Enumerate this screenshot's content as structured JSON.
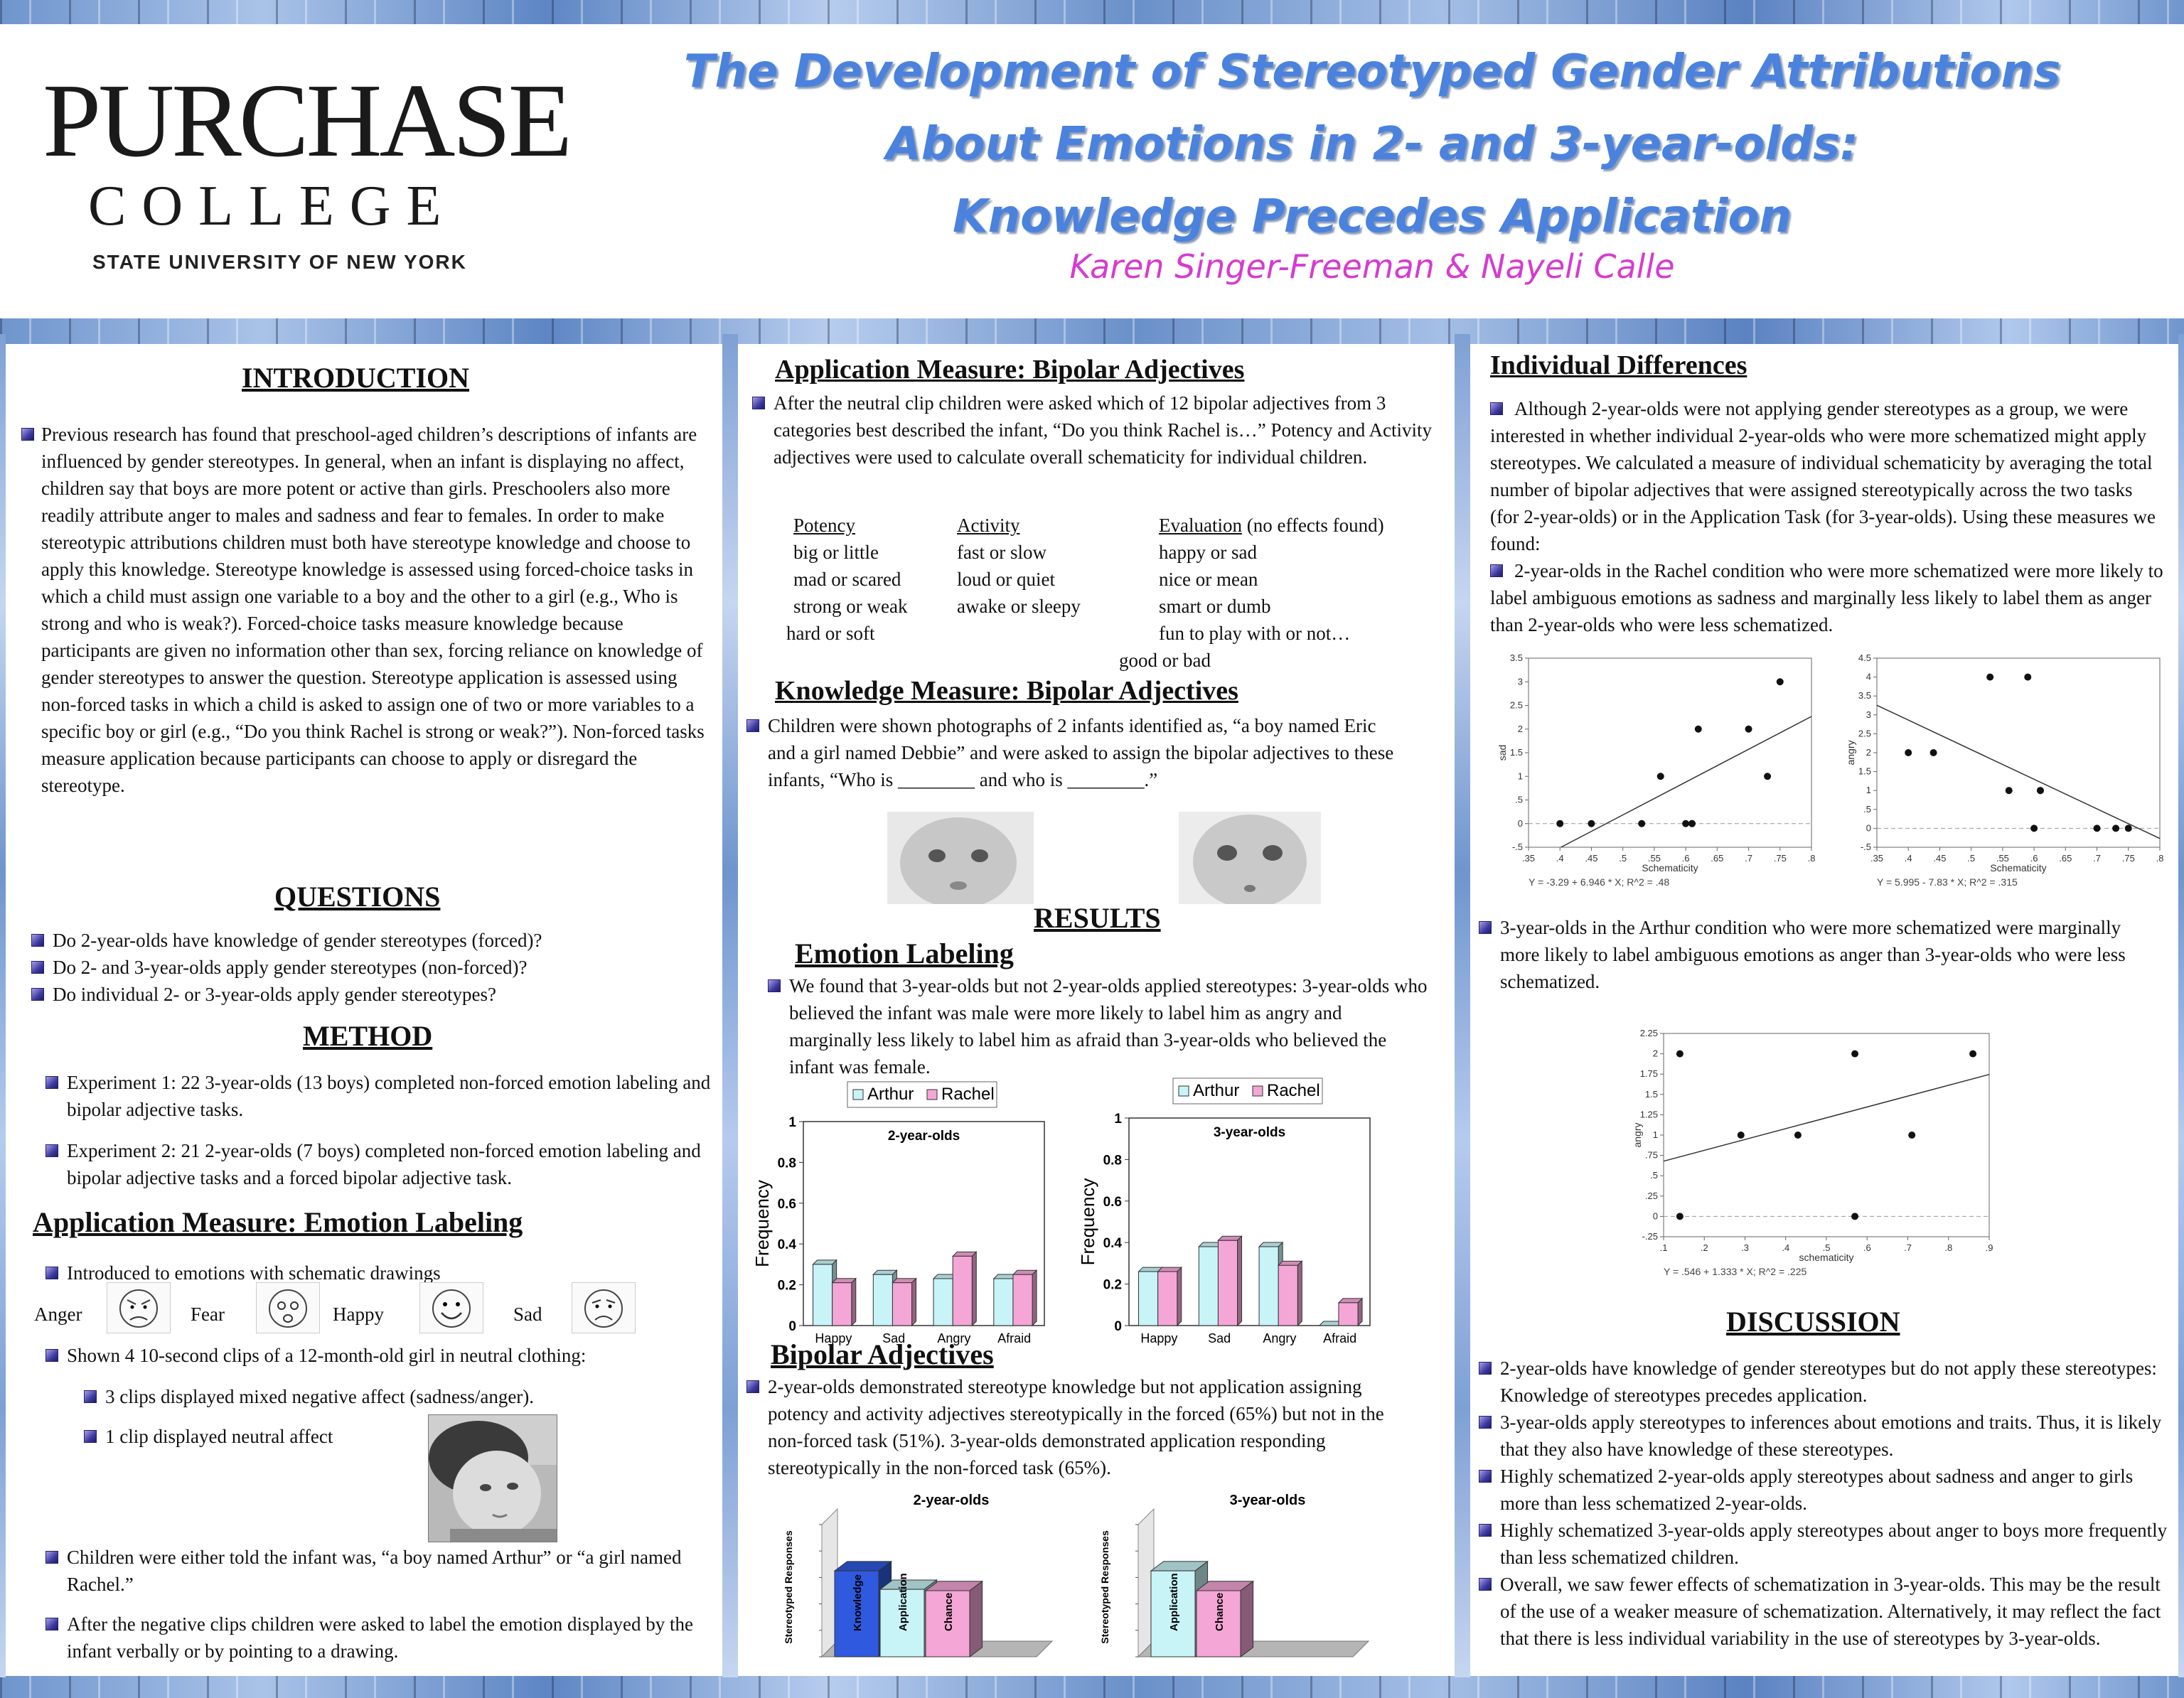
{
  "header": {
    "logo_line1": "PURCHASE",
    "logo_line2": "COLLEGE",
    "logo_line3": "STATE UNIVERSITY OF NEW YORK",
    "title_line1": "The Development of Stereotyped Gender Attributions",
    "title_line2": "About Emotions in 2- and 3-year-olds:",
    "title_line3": "Knowledge Precedes Application",
    "authors": "Karen Singer-Freeman &  Nayeli Calle"
  },
  "intro": {
    "heading": "INTRODUCTION",
    "text": "Previous research has found that preschool-aged children’s descriptions of infants are influenced by gender stereotypes.  In general, when an infant is displaying no affect, children say that boys are more potent or active than girls. Preschoolers also more readily attribute anger to males and sadness and fear to females.  In order to make stereotypic attributions children must both have stereotype knowledge and choose to apply this knowledge.  Stereotype knowledge is assessed using forced-choice tasks in which a child must assign one variable to a boy and the other to a girl (e.g., Who is strong and who is weak?).  Forced-choice tasks measure knowledge because participants are given no information other than sex, forcing reliance on knowledge of gender stereotypes to answer the question.  Stereotype application is assessed using non-forced tasks in which a child is asked to assign one of two or more variables to a specific boy or girl (e.g., “Do you think Rachel is strong or weak?”).  Non-forced tasks measure application because participants can choose to apply or disregard the stereotype."
  },
  "questions": {
    "heading": "QUESTIONS",
    "items": [
      "Do 2-year-olds have knowledge of gender stereotypes (forced)?",
      "Do 2- and 3-year-olds apply gender stereotypes (non-forced)?",
      "Do individual 2- or 3-year-olds apply gender stereotypes?"
    ]
  },
  "method": {
    "heading": "METHOD",
    "exp1": "Experiment 1: 22 3-year-olds (13 boys) completed non-forced emotion labeling and bipolar adjective tasks.",
    "exp2": "Experiment 2:  21 2-year-olds (7 boys) completed non-forced emotion labeling and bipolar adjective tasks and a forced bipolar adjective task."
  },
  "app_emotion": {
    "heading": "Application Measure:  Emotion Labeling",
    "intro": "Introduced to emotions with schematic drawings",
    "faces": [
      "Anger",
      "Fear",
      "Happy",
      "Sad"
    ],
    "clips": "Shown 4 10-second clips of a 12-month-old girl in neutral clothing:",
    "sub1": "3 clips displayed mixed negative affect (sadness/anger).",
    "sub2": "1 clip displayed neutral affect",
    "told": "Children were either told the infant was, “a boy named Arthur” or “a girl named Rachel.”",
    "after": "After the negative clips children were asked to label the emotion displayed by the infant verbally or by pointing to a drawing."
  },
  "app_bipolar": {
    "heading": "Application Measure: Bipolar Adjectives",
    "text": "After the neutral clip children were asked which of 12 bipolar adjectives from 3 categories best described the infant, “Do you think Rachel is…”  Potency and Activity adjectives were used to calculate overall schematicity  for individual children.",
    "potency_h": "Potency",
    "potency": [
      "big or little",
      "mad or scared",
      "strong or weak",
      "hard or soft"
    ],
    "activity_h": "Activity",
    "activity": [
      "fast  or slow",
      "loud or quiet",
      "awake or sleepy"
    ],
    "evaluation_h": "Evaluation",
    "evaluation_note": "(no effects found)",
    "evaluation": [
      "happy or sad",
      "nice or mean",
      "smart or dumb",
      "fun to play with or not…",
      "good or bad"
    ]
  },
  "knowledge": {
    "heading": "Knowledge Measure: Bipolar Adjectives",
    "text": "Children were shown photographs of 2 infants identified as, “a boy named Eric and a girl named Debbie” and were asked to assign the bipolar adjectives to these infants, “Who is ________ and who is ________.”"
  },
  "results": {
    "heading": "RESULTS",
    "emotion_h": "Emotion Labeling",
    "emotion_text": "We found that 3-year-olds but not 2-year-olds applied stereotypes:  3-year-olds who believed the infant was male were more likely to label him as angry and marginally less likely to label him as afraid than 3-year-olds who believed the infant was female.",
    "bipolar_h": "Bipolar Adjectives",
    "bipolar_text": "2-year-olds demonstrated stereotype knowledge but not application assigning potency and activity adjectives stereotypically in the forced (65%) but not in the non-forced task (51%).  3-year-olds demonstrated application responding stereotypically in the non-forced task (65%)."
  },
  "individual": {
    "heading": "Individual Differences",
    "text1": "Although 2-year-olds were not applying gender stereotypes as a group, we were interested in whether individual 2-year-olds who were more schematized might apply stereotypes.  We calculated a measure of individual schematicity by averaging the total number of bipolar adjectives that were assigned stereotypically across the two tasks (for 2-year-olds) or in the Application Task (for 3-year-olds).  Using these measures we found:",
    "text2": "2-year-olds in the Rachel condition who were more schematized were more likely to label ambiguous emotions as sadness and marginally less likely to label them as anger than 2-year-olds who were less schematized.",
    "text3": "3-year-olds in the Arthur condition who were more schematized were marginally more likely to label ambiguous emotions as anger than 3-year-olds who were less schematized."
  },
  "discussion": {
    "heading": "DISCUSSION",
    "items": [
      "2-year-olds have knowledge of gender stereotypes but do not apply these stereotypes: Knowledge of stereotypes precedes application.",
      "3-year-olds apply stereotypes to inferences about emotions and traits. Thus, it is likely that they also have knowledge of these stereotypes.",
      "Highly schematized 2-year-olds apply stereotypes about sadness and anger to girls more than less schematized 2-year-olds.",
      "Highly schematized 3-year-olds apply stereotypes about anger to boys more frequently than less schematized  children.",
      "Overall, we saw fewer effects of schematization in 3-year-olds.  This may be the result of the use of a weaker measure of schematization. Alternatively, it may reflect the fact that there is less individual variability in the use of stereotypes by 3-year-olds."
    ]
  },
  "colors": {
    "arthur": "#c8f4f8",
    "rachel": "#f4a6d6",
    "knowledge": "#2f5ae0",
    "title": "#4a82de",
    "authors": "#d63bd0"
  },
  "chart_data": [
    {
      "type": "bar",
      "title": "2-year-olds",
      "ylabel": "Frequency",
      "categories": [
        "Happy",
        "Sad",
        "Angry",
        "Afraid"
      ],
      "ylim": [
        0,
        1
      ],
      "yticks": [
        "0",
        "0.2",
        "0.4",
        "0.6",
        "0.8",
        "1"
      ],
      "series": [
        {
          "name": "Arthur",
          "values": [
            0.3,
            0.25,
            0.23,
            0.23
          ]
        },
        {
          "name": "Rachel",
          "values": [
            0.21,
            0.21,
            0.34,
            0.25
          ]
        }
      ],
      "legend": "top"
    },
    {
      "type": "bar",
      "title": "3-year-olds",
      "ylabel": "Frequency",
      "categories": [
        "Happy",
        "Sad",
        "Angry",
        "Afraid"
      ],
      "ylim": [
        0,
        1
      ],
      "yticks": [
        "0",
        "0.2",
        "0.4",
        "0.6",
        "0.8",
        "1"
      ],
      "series": [
        {
          "name": "Arthur",
          "values": [
            0.26,
            0.38,
            0.38,
            0.0
          ]
        },
        {
          "name": "Rachel",
          "values": [
            0.26,
            0.41,
            0.29,
            0.11
          ]
        }
      ],
      "legend": "top"
    },
    {
      "type": "bar",
      "title": "2-year-olds",
      "ylabel": "Stereotyped Responses",
      "categories": [
        "Knowledge",
        "Application",
        "Chance"
      ],
      "values": [
        0.65,
        0.51,
        0.5
      ],
      "ylim": [
        0,
        1
      ]
    },
    {
      "type": "bar",
      "title": "3-year-olds",
      "ylabel": "Stereotyped Responses",
      "categories": [
        "Application",
        "Chance"
      ],
      "values": [
        0.65,
        0.5
      ],
      "ylim": [
        0,
        1
      ]
    },
    {
      "type": "scatter",
      "xlabel": "Schematicity",
      "ylabel": "sad",
      "xlim": [
        0.35,
        0.8
      ],
      "ylim": [
        -0.5,
        3.5
      ],
      "xticks": [
        ".35",
        ".4",
        ".45",
        ".5",
        ".55",
        ".6",
        ".65",
        ".7",
        ".75",
        ".8"
      ],
      "yticks": [
        "-.5",
        "0",
        ".5",
        "1",
        "1.5",
        "2",
        "2.5",
        "3",
        "3.5"
      ],
      "x": [
        0.4,
        0.45,
        0.53,
        0.56,
        0.6,
        0.61,
        0.61,
        0.62,
        0.7,
        0.73,
        0.75
      ],
      "y": [
        0,
        0,
        0,
        1,
        0,
        0,
        0,
        2,
        2,
        1,
        3
      ],
      "fit": {
        "intercept": -3.29,
        "slope": 6.946
      },
      "equation": "Y = -3.29 + 6.946 * X; R^2 = .48"
    },
    {
      "type": "scatter",
      "xlabel": "Schematicity",
      "ylabel": "angry",
      "xlim": [
        0.35,
        0.8
      ],
      "ylim": [
        -0.5,
        4.5
      ],
      "xticks": [
        ".35",
        ".4",
        ".45",
        ".5",
        ".55",
        ".6",
        ".65",
        ".7",
        ".75",
        ".8"
      ],
      "yticks": [
        "-.5",
        "0",
        ".5",
        "1",
        "1.5",
        "2",
        "2.5",
        "3",
        "3.5",
        "4",
        "4.5"
      ],
      "x": [
        0.4,
        0.44,
        0.53,
        0.56,
        0.59,
        0.6,
        0.61,
        0.61,
        0.7,
        0.73,
        0.75
      ],
      "y": [
        2,
        2,
        4,
        1,
        4,
        0,
        1,
        1,
        0,
        0,
        0
      ],
      "fit": {
        "intercept": 5.995,
        "slope": -7.83
      },
      "equation": "Y = 5.995 - 7.83 * X; R^2 = .315"
    },
    {
      "type": "scatter",
      "xlabel": "schematicity",
      "ylabel": "angry",
      "xlim": [
        0.1,
        0.9
      ],
      "ylim": [
        -0.25,
        2.25
      ],
      "xticks": [
        ".1",
        ".2",
        ".3",
        ".4",
        ".5",
        ".6",
        ".7",
        ".8",
        ".9"
      ],
      "yticks": [
        "-.25",
        "0",
        ".25",
        ".5",
        ".75",
        "1",
        "1.25",
        "1.5",
        "1.75",
        "2",
        "2.25"
      ],
      "x": [
        0.14,
        0.14,
        0.29,
        0.43,
        0.57,
        0.57,
        0.71,
        0.86
      ],
      "y": [
        2,
        0,
        1,
        1,
        2,
        0,
        1,
        2
      ],
      "fit": {
        "intercept": 0.546,
        "slope": 1.333
      },
      "equation": "Y = .546 + 1.333 * X; R^2 = .225"
    }
  ]
}
